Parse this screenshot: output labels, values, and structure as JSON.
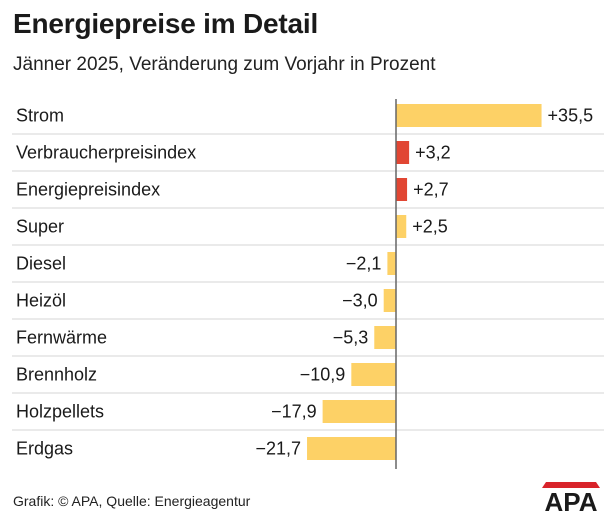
{
  "header": {
    "title": "Energiepreise im Detail",
    "subtitle": "Jänner 2025, Veränderung zum Vorjahr in Prozent"
  },
  "footer": {
    "source": "Grafik: © APA, Quelle: Energieagentur",
    "logo_text": "APA"
  },
  "colors": {
    "bar_default": "#fdd166",
    "bar_highlight": "#e14633",
    "axis": "#666666",
    "row_line": "#d4d4d4",
    "logo_red": "#d8232a"
  },
  "chart_data": {
    "type": "bar",
    "orientation": "horizontal",
    "title": "Energiepreise im Detail",
    "subtitle": "Jänner 2025, Veränderung zum Vorjahr in Prozent",
    "unit": "Prozent",
    "categories": [
      "Strom",
      "Verbraucherpreisindex",
      "Energiepreisindex",
      "Super",
      "Diesel",
      "Heizöl",
      "Fernwärme",
      "Brennholz",
      "Holzpellets",
      "Erdgas"
    ],
    "values": [
      35.5,
      3.2,
      2.7,
      2.5,
      -2.1,
      -3.0,
      -5.3,
      -10.9,
      -17.9,
      -21.7
    ],
    "labels": [
      "+35,5",
      "+3,2",
      "+2,7",
      "+2,5",
      "−2,1",
      "−3,0",
      "−5,3",
      "−10,9",
      "−17,9",
      "−21,7"
    ],
    "highlight": [
      "Verbraucherpreisindex",
      "Energiepreisindex"
    ],
    "xlim": [
      -21.7,
      35.5
    ],
    "grid": false,
    "legend": "none"
  }
}
